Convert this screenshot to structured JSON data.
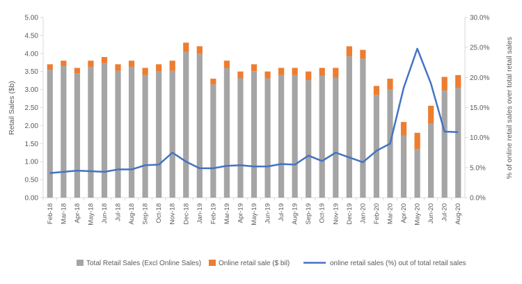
{
  "chart_data": {
    "type": "bar",
    "title": "",
    "categories": [
      "Feb-18",
      "Mar-18",
      "Apr-18",
      "May-18",
      "Jun-18",
      "Jul-18",
      "Aug-18",
      "Sep-18",
      "Oct-18",
      "Nov-18",
      "Dec-18",
      "Jan-19",
      "Feb-19",
      "Mar-19",
      "Apr-19",
      "May-19",
      "Jun-19",
      "Jul-19",
      "Aug-19",
      "Sep-19",
      "Oct-19",
      "Nov-19",
      "Dec-19",
      "Jan-20",
      "Feb-20",
      "Mar-20",
      "Apr-20",
      "May-20",
      "Jun-20",
      "Jul-20",
      "Aug-20"
    ],
    "series": [
      {
        "name": "Total Retail Sales (Excl Online Sales)",
        "type": "stacked-bar",
        "axis": "left",
        "color": "#a5a5a5",
        "values": [
          3.55,
          3.65,
          3.45,
          3.63,
          3.73,
          3.52,
          3.63,
          3.4,
          3.5,
          3.52,
          4.04,
          3.99,
          3.14,
          3.6,
          3.31,
          3.51,
          3.31,
          3.4,
          3.4,
          3.26,
          3.38,
          3.33,
          3.92,
          3.86,
          2.85,
          3.0,
          1.72,
          1.35,
          2.05,
          2.97,
          3.05
        ]
      },
      {
        "name": "Online retail sale ($ bil)",
        "type": "stacked-bar",
        "axis": "left",
        "color": "#ed7d31",
        "values": [
          0.15,
          0.15,
          0.15,
          0.17,
          0.17,
          0.18,
          0.17,
          0.2,
          0.2,
          0.28,
          0.26,
          0.21,
          0.16,
          0.2,
          0.19,
          0.19,
          0.19,
          0.2,
          0.2,
          0.24,
          0.22,
          0.27,
          0.28,
          0.24,
          0.25,
          0.3,
          0.38,
          0.45,
          0.5,
          0.38,
          0.35
        ]
      },
      {
        "name": "online retail sales (%) out of total retail sales",
        "type": "line",
        "axis": "right",
        "color": "#4472c4",
        "values": [
          4.1,
          4.3,
          4.5,
          4.4,
          4.3,
          4.7,
          4.7,
          5.4,
          5.5,
          7.5,
          6.0,
          4.9,
          4.9,
          5.3,
          5.4,
          5.2,
          5.2,
          5.6,
          5.5,
          7.0,
          6.1,
          7.5,
          6.7,
          5.9,
          7.8,
          9.0,
          18.3,
          24.8,
          19.0,
          11.0,
          10.9
        ]
      }
    ],
    "ylabel": "Retail Sales ($b)",
    "ylim": [
      0,
      5
    ],
    "yticks": [
      "0.00",
      "0.50",
      "1.00",
      "1.50",
      "2.00",
      "2.50",
      "3.00",
      "3.50",
      "4.00",
      "4.50",
      "5.00"
    ],
    "y2label": "% of online retail sales over total retail sales",
    "y2lim": [
      0,
      30
    ],
    "y2ticks": [
      "0.0%",
      "5.0%",
      "10.0%",
      "15.0%",
      "20.0%",
      "25.0%",
      "30.0%"
    ],
    "grid": false,
    "legend": "bottom"
  }
}
